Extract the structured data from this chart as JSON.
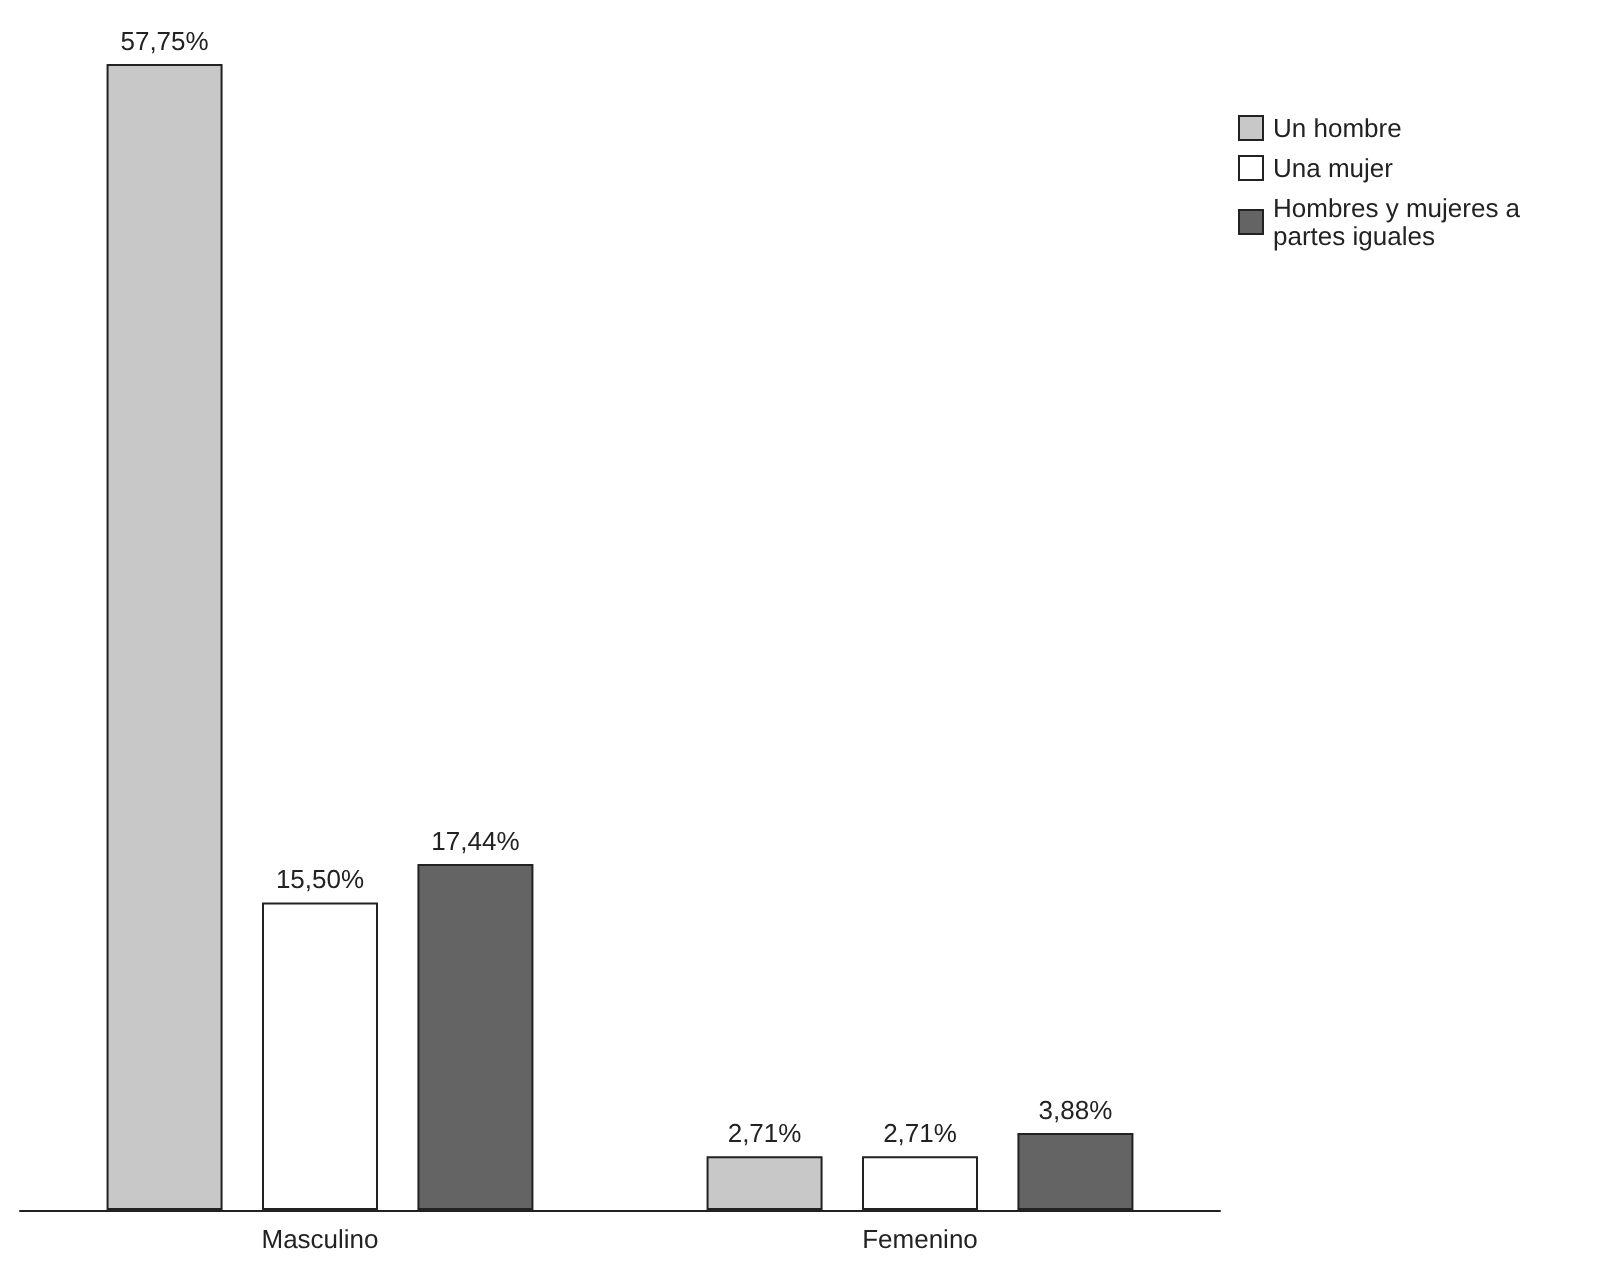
{
  "chart_data": {
    "type": "bar",
    "categories": [
      "Masculino",
      "Femenino"
    ],
    "series": [
      {
        "name": "Un hombre",
        "color": "#c8c8c8",
        "values": [
          57.75,
          2.71
        ],
        "value_labels": [
          "57,75%",
          "2,71%"
        ]
      },
      {
        "name": "Una mujer",
        "color": "#ffffff",
        "values": [
          15.5,
          2.71
        ],
        "value_labels": [
          "15,50%",
          "2,71%"
        ]
      },
      {
        "name": "Hombres y mujeres a partes iguales",
        "color": "#646464",
        "values": [
          17.44,
          3.88
        ],
        "value_labels": [
          "17,44%",
          "3,88%"
        ]
      }
    ],
    "legend": "top right",
    "grid": false
  }
}
